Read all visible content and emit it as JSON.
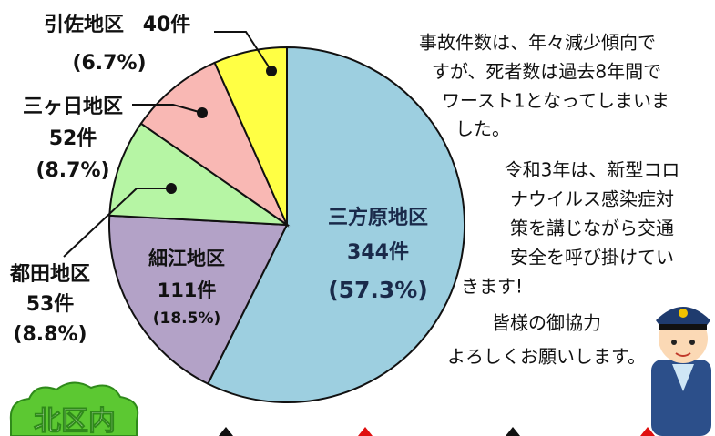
{
  "chart_data": {
    "type": "pie",
    "categories": [
      "三方原地区",
      "細江地区",
      "都田地区",
      "三ヶ日地区",
      "引佐地区"
    ],
    "values": [
      344,
      111,
      53,
      52,
      40
    ],
    "value_labels": [
      "344件",
      "111件",
      "53件",
      "52件",
      "40件"
    ],
    "percentages": [
      57.3,
      18.5,
      8.8,
      8.7,
      6.7
    ],
    "percentage_labels": [
      "(57.3%)",
      "(18.5%)",
      "(8.8%)",
      "(8.7%)",
      "(6.7%)"
    ],
    "colors": [
      "#9dcfe0",
      "#b3a2c7",
      "#b6f5a4",
      "#f9b8b4",
      "#ffff44"
    ]
  },
  "annotation": [
    "事故件数は、年々減少傾向で",
    "すが、死者数は過去8年間で",
    "ワースト1となってしまいま",
    "した。",
    "令和3年は、新型コロ",
    "ナウイルス感染症対",
    "策を講じながら交通",
    "安全を呼び掛けてい",
    "きます!",
    "皆様の御協力",
    "よろしくお願いします。"
  ],
  "badge": "北区内"
}
